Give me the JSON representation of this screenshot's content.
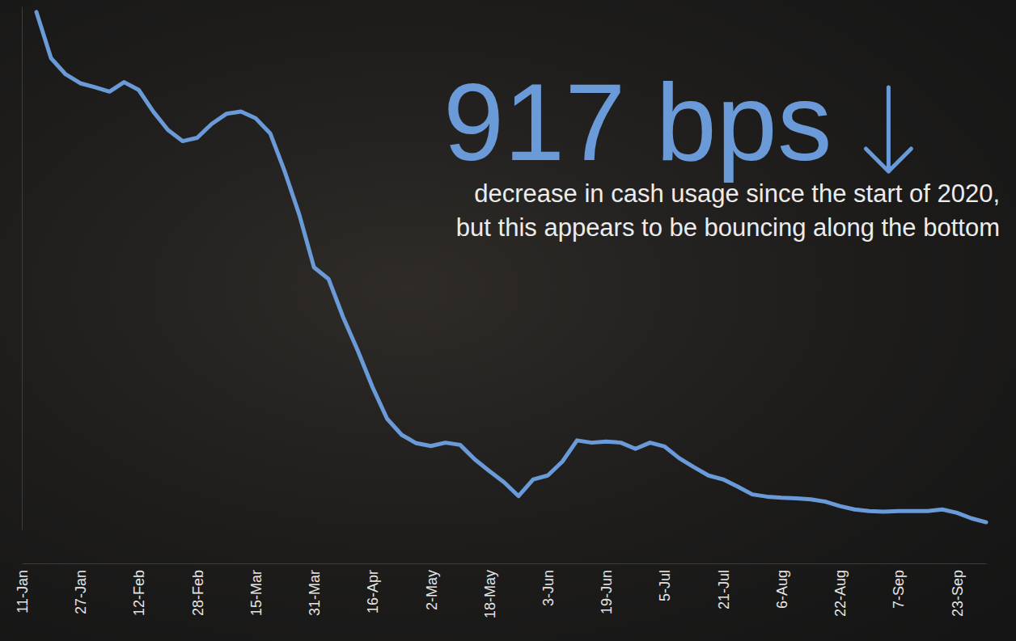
{
  "chart_data": {
    "type": "line",
    "title": "917 bps",
    "subtitle": "decrease in cash usage since the start of 2020, but this appears to be bouncing along the bottom",
    "color": "#6a9bd8",
    "tick_labels": "x",
    "ylim": [
      -930,
      10
    ],
    "categories": [
      "11-Jan",
      null,
      null,
      null,
      "27-Jan",
      null,
      null,
      null,
      "12-Feb",
      null,
      null,
      null,
      "28-Feb",
      null,
      null,
      null,
      "15-Mar",
      null,
      null,
      null,
      "31-Mar",
      null,
      null,
      null,
      "16-Apr",
      null,
      null,
      null,
      "2-May",
      null,
      null,
      null,
      "18-May",
      null,
      null,
      null,
      "3-Jun",
      null,
      null,
      null,
      "19-Jun",
      null,
      null,
      null,
      "5-Jul",
      null,
      null,
      null,
      "21-Jul",
      null,
      null,
      null,
      "6-Aug",
      null,
      null,
      null,
      "22-Aug",
      null,
      null,
      null,
      "7-Sep",
      null,
      null,
      null,
      "23-Sep",
      null,
      null
    ],
    "values": [
      null,
      0,
      -83,
      -112,
      -128,
      -135,
      -143,
      -126,
      -140,
      -179,
      -212,
      -232,
      -226,
      -201,
      -183,
      -179,
      -191,
      -218,
      -287,
      -365,
      -459,
      -480,
      -549,
      -609,
      -674,
      -731,
      -760,
      -775,
      -780,
      -774,
      -778,
      -804,
      -825,
      -845,
      -870,
      -840,
      -833,
      -808,
      -770,
      -774,
      -772,
      -774,
      -785,
      -774,
      -781,
      -802,
      -818,
      -833,
      -840,
      -853,
      -867,
      -871,
      -873,
      -874,
      -876,
      -880,
      -888,
      -894,
      -897,
      -898,
      -897,
      -897,
      -897,
      -894,
      -900,
      -910,
      -917
    ]
  }
}
